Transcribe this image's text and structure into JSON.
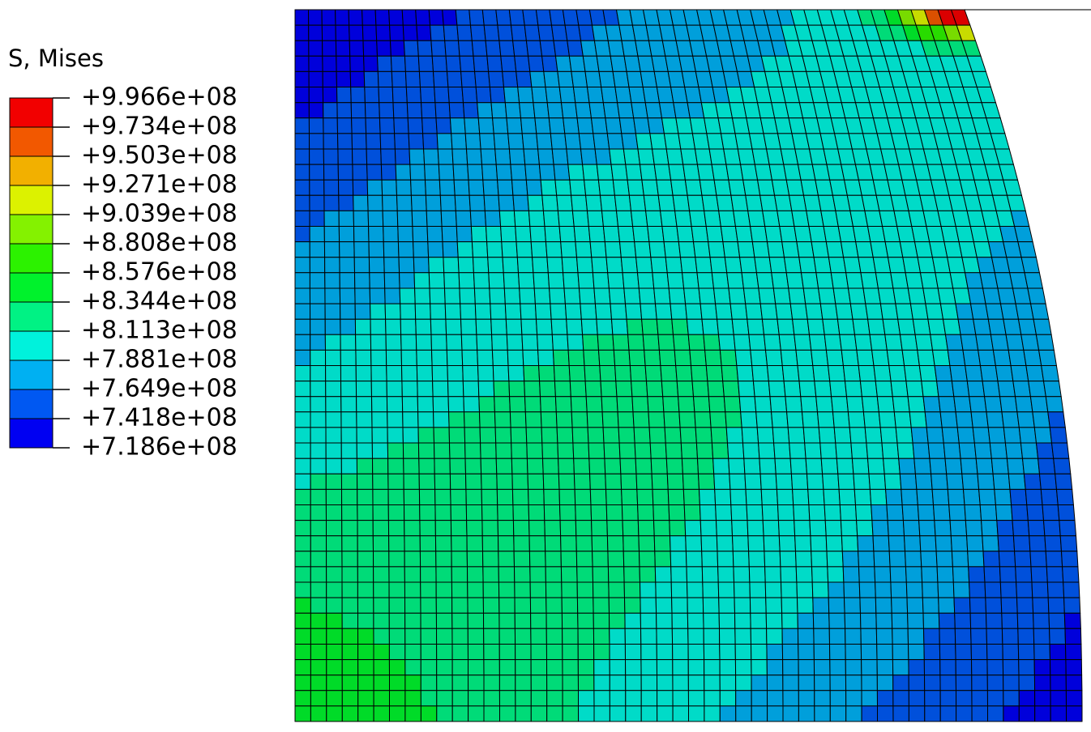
{
  "legend": {
    "title": "S, Mises",
    "labels": [
      "+9.966e+08",
      "+9.734e+08",
      "+9.503e+08",
      "+9.271e+08",
      "+9.039e+08",
      "+8.808e+08",
      "+8.576e+08",
      "+8.344e+08",
      "+8.113e+08",
      "+7.881e+08",
      "+7.649e+08",
      "+7.418e+08",
      "+7.186e+08"
    ]
  }
}
